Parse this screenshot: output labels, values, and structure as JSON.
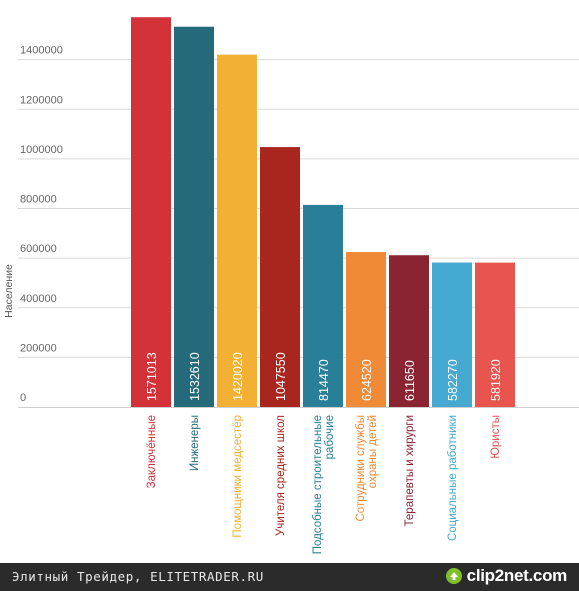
{
  "chart_data": {
    "type": "bar",
    "ylabel": "Население",
    "ylim": [
      0,
      1600000
    ],
    "yticks": [
      "0",
      "200000",
      "400000",
      "600000",
      "800000",
      "1000000",
      "1200000",
      "1400000"
    ],
    "grid": true,
    "categories": [
      "Заключённые",
      "Инженеры",
      "Помощники медсестёр",
      "Учителя средних школ",
      "Подсобные строительные рабочие",
      "Сотрудники службы охраны детей",
      "Терапевты и хирурги",
      "Социальные работники",
      "Юристы"
    ],
    "category_lines": [
      [
        "Заключённые"
      ],
      [
        "Инженеры"
      ],
      [
        "Помощники медсестёр"
      ],
      [
        "Учителя средних школ"
      ],
      [
        "Подсобные строительные",
        "рабочие"
      ],
      [
        "Сотрудники службы",
        "охраны детей"
      ],
      [
        "Терапевты и хирурги"
      ],
      [
        "Социальные работники"
      ],
      [
        "Юристы"
      ]
    ],
    "values": [
      1571013,
      1532610,
      1420020,
      1047550,
      814470,
      624520,
      611650,
      582270,
      581920
    ],
    "value_labels": [
      "1571013",
      "1532610",
      "1420020",
      "1047550",
      "814470",
      "624520",
      "611650",
      "582270",
      "581920"
    ],
    "colors": [
      "#d23238",
      "#246a7a",
      "#f2b035",
      "#a9261f",
      "#2a7f98",
      "#f08a36",
      "#8a2433",
      "#45a9d1",
      "#e8554f"
    ]
  },
  "footer": {
    "credit": "Элитный Трейдер, ELITETRADER.RU",
    "logo_text": "clip2net.com"
  }
}
